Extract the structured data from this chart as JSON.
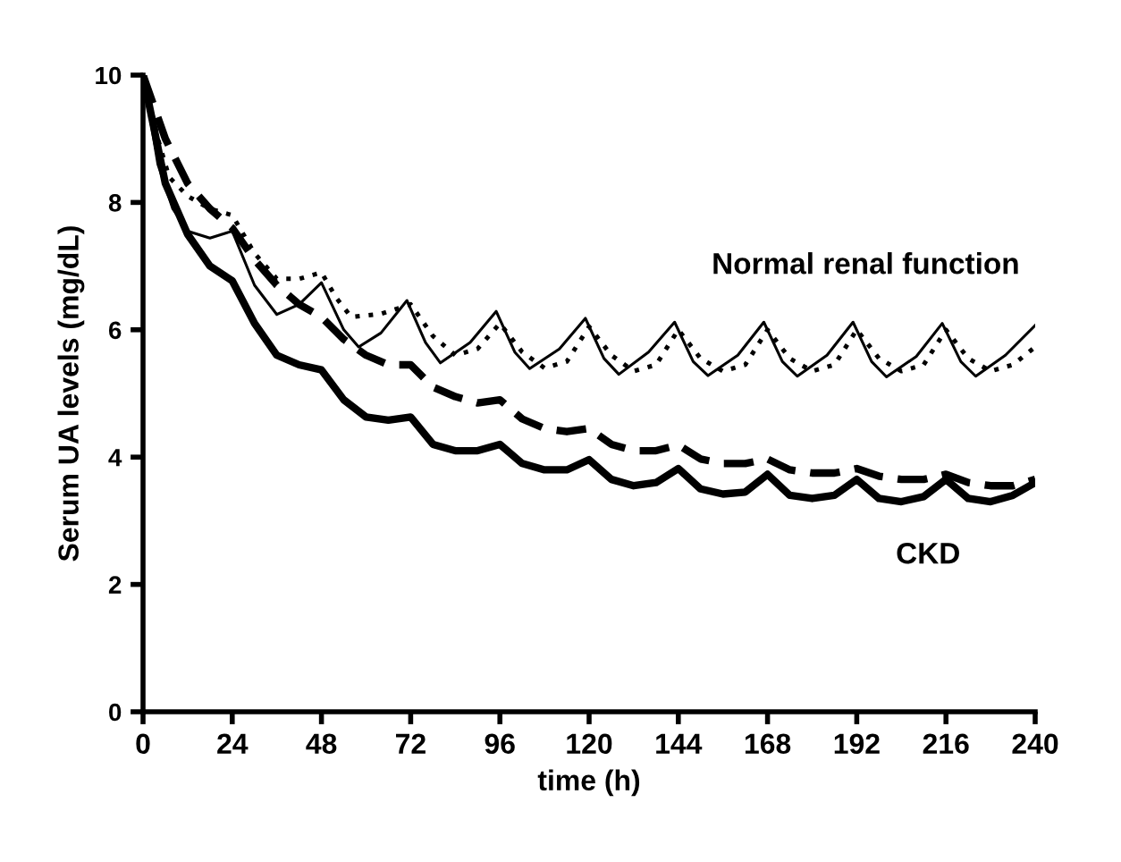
{
  "chart_data": {
    "type": "line",
    "xlabel": "time (h)",
    "ylabel": "Serum UA levels (mg/dL)",
    "xlim": [
      0,
      240
    ],
    "ylim": [
      0,
      10
    ],
    "xticks": [
      0,
      24,
      48,
      72,
      96,
      120,
      144,
      168,
      192,
      216,
      240
    ],
    "yticks": [
      0,
      2,
      4,
      6,
      8,
      10
    ],
    "grid": false,
    "marker": "none",
    "series": [
      {
        "color": "#000000",
        "line_style": "solid",
        "x": [
          0,
          4,
          8,
          12,
          18,
          24,
          30,
          36,
          42,
          48,
          54,
          58,
          64,
          71,
          76,
          80,
          88,
          95,
          100,
          104,
          112,
          119,
          124,
          128,
          136,
          143,
          148,
          152,
          160,
          167,
          172,
          176,
          184,
          191,
          196,
          200,
          208,
          215,
          220,
          224,
          232,
          240
        ],
        "values": [
          10,
          8.6,
          7.9,
          7.55,
          7.44,
          7.55,
          6.7,
          6.24,
          6.4,
          6.74,
          6.0,
          5.73,
          5.95,
          6.46,
          5.8,
          5.48,
          5.8,
          6.29,
          5.65,
          5.39,
          5.7,
          6.18,
          5.55,
          5.3,
          5.65,
          6.12,
          5.5,
          5.28,
          5.6,
          6.12,
          5.5,
          5.27,
          5.6,
          6.12,
          5.5,
          5.26,
          5.58,
          6.1,
          5.5,
          5.27,
          5.6,
          6.07
        ]
      },
      {
        "color": "#000000",
        "line_style": "dotted",
        "x": [
          0,
          4,
          7,
          12,
          18,
          24,
          30,
          36,
          42,
          48,
          52,
          56,
          64,
          72,
          78,
          84,
          90,
          96,
          102,
          108,
          114,
          120,
          126,
          132,
          138,
          144,
          150,
          156,
          162,
          168,
          174,
          180,
          186,
          192,
          198,
          204,
          210,
          216,
          222,
          228,
          234,
          240
        ],
        "values": [
          10,
          9.0,
          8.4,
          8.1,
          7.9,
          7.8,
          7.2,
          6.8,
          6.8,
          6.9,
          6.5,
          6.2,
          6.25,
          6.4,
          5.9,
          5.6,
          5.7,
          6.1,
          5.65,
          5.4,
          5.5,
          6.05,
          5.6,
          5.35,
          5.45,
          6.0,
          5.55,
          5.35,
          5.45,
          6.0,
          5.55,
          5.35,
          5.45,
          6.0,
          5.55,
          5.35,
          5.45,
          6.0,
          5.55,
          5.35,
          5.45,
          5.73
        ]
      },
      {
        "color": "#000000",
        "line_style": "dashed",
        "x": [
          0,
          6,
          12,
          18,
          24,
          30,
          36,
          42,
          48,
          54,
          60,
          66,
          72,
          78,
          84,
          90,
          96,
          102,
          108,
          114,
          120,
          126,
          132,
          138,
          144,
          150,
          156,
          162,
          168,
          174,
          180,
          186,
          192,
          198,
          204,
          210,
          216,
          222,
          228,
          234,
          240
        ],
        "values": [
          10,
          9.0,
          8.3,
          7.9,
          7.6,
          7.1,
          6.7,
          6.4,
          6.2,
          5.85,
          5.6,
          5.45,
          5.45,
          5.1,
          4.95,
          4.85,
          4.9,
          4.6,
          4.45,
          4.4,
          4.45,
          4.2,
          4.1,
          4.1,
          4.19,
          3.97,
          3.9,
          3.9,
          3.97,
          3.8,
          3.75,
          3.75,
          3.82,
          3.7,
          3.65,
          3.65,
          3.73,
          3.6,
          3.55,
          3.55,
          3.65
        ]
      },
      {
        "color": "#000000",
        "line_style": "solid",
        "x": [
          0,
          6,
          12,
          18,
          24,
          30,
          36,
          42,
          48,
          54,
          60,
          66,
          72,
          78,
          84,
          90,
          96,
          102,
          108,
          114,
          120,
          126,
          132,
          138,
          144,
          150,
          156,
          162,
          168,
          174,
          180,
          186,
          192,
          198,
          204,
          210,
          216,
          222,
          228,
          234,
          240
        ],
        "values": [
          10,
          8.3,
          7.5,
          7.0,
          6.77,
          6.1,
          5.6,
          5.45,
          5.37,
          4.9,
          4.63,
          4.58,
          4.63,
          4.2,
          4.1,
          4.1,
          4.2,
          3.9,
          3.8,
          3.8,
          3.96,
          3.65,
          3.55,
          3.6,
          3.82,
          3.5,
          3.42,
          3.45,
          3.73,
          3.4,
          3.35,
          3.4,
          3.65,
          3.35,
          3.3,
          3.38,
          3.65,
          3.35,
          3.3,
          3.4,
          3.6
        ]
      }
    ],
    "annotations": [
      "Normal renal function",
      "CKD"
    ]
  }
}
